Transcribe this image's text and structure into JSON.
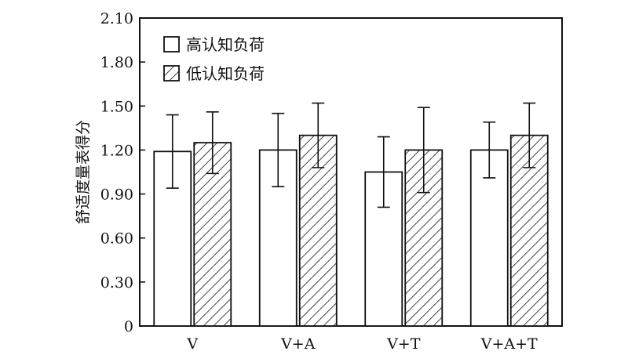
{
  "chart_data": {
    "type": "bar",
    "title": "",
    "xlabel": "",
    "ylabel": "舒适度量表得分",
    "ylim": [
      0,
      2.1
    ],
    "yticks": [
      "0",
      "0.30",
      "0.60",
      "0.90",
      "1.20",
      "1.50",
      "1.80",
      "2.10"
    ],
    "categories": [
      "V",
      "V+A",
      "V+T",
      "V+A+T"
    ],
    "legend_position": "top-left",
    "grid": false,
    "series": [
      {
        "name": "高认知负荷",
        "fill": "white",
        "values": [
          1.19,
          1.2,
          1.05,
          1.2
        ],
        "errors": [
          0.25,
          0.25,
          0.24,
          0.19
        ]
      },
      {
        "name": "低认知负荷",
        "fill": "hatched",
        "values": [
          1.25,
          1.3,
          1.2,
          1.3
        ],
        "errors": [
          0.21,
          0.22,
          0.29,
          0.22
        ]
      }
    ]
  }
}
